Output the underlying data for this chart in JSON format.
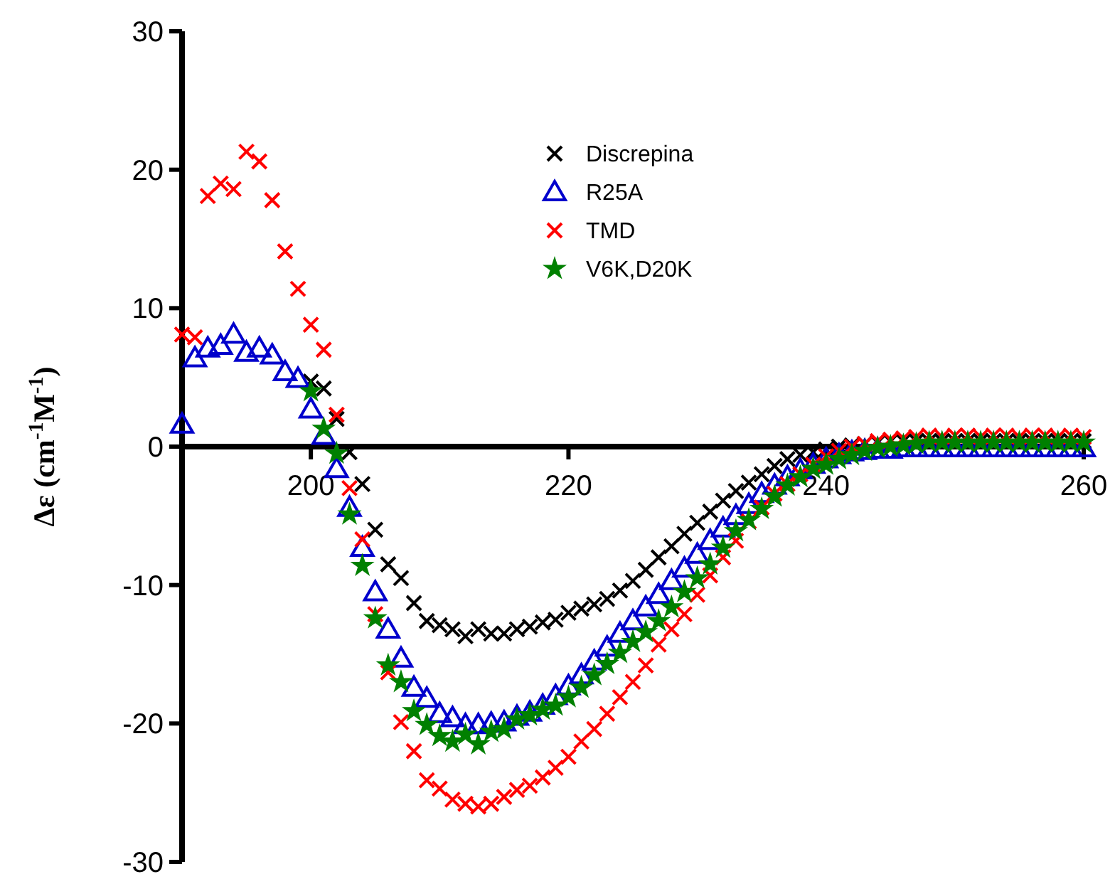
{
  "chart_data": {
    "type": "scatter",
    "ylabel": "Δε (cm$^{-1}$M$^{-1}$)",
    "xlim": [
      190,
      260
    ],
    "xticks": [
      200,
      220,
      240,
      260
    ],
    "ylim": [
      -30,
      30
    ],
    "yticks": [
      -30,
      -20,
      -10,
      0,
      10,
      20,
      30
    ],
    "grid": false,
    "legend": "top right",
    "series": [
      {
        "name": "Discrepina",
        "color": "#000000",
        "marker": "cross",
        "x": [
          200,
          201,
          202,
          203,
          204,
          205,
          206,
          207,
          208,
          209,
          210,
          211,
          212,
          213,
          214,
          215,
          216,
          217,
          218,
          219,
          220,
          221,
          222,
          223,
          224,
          225,
          226,
          227,
          228,
          229,
          230,
          231,
          232,
          233,
          234,
          235,
          236,
          237,
          238,
          239,
          240,
          241,
          242,
          243,
          244,
          245,
          246,
          247,
          248,
          249,
          250,
          251,
          252,
          253,
          254,
          255,
          256,
          257,
          258,
          259,
          260
        ],
        "values": [
          4.7,
          4.2,
          2.0,
          -0.4,
          -2.7,
          -6.0,
          -8.5,
          -9.5,
          -11.3,
          -12.6,
          -12.9,
          -13.2,
          -13.7,
          -13.2,
          -13.5,
          -13.5,
          -13.2,
          -13.0,
          -12.7,
          -12.5,
          -12.0,
          -11.7,
          -11.4,
          -11.0,
          -10.4,
          -9.7,
          -8.9,
          -8.0,
          -7.2,
          -6.3,
          -5.5,
          -4.7,
          -3.9,
          -3.2,
          -2.6,
          -2.0,
          -1.4,
          -0.9,
          -0.6,
          -0.4,
          -0.2,
          0.0,
          0.1,
          0.2,
          0.3,
          0.4,
          0.4,
          0.4,
          0.4,
          0.4,
          0.4,
          0.4,
          0.4,
          0.4,
          0.4,
          0.4,
          0.4,
          0.4,
          0.4,
          0.4,
          0.4
        ]
      },
      {
        "name": "R25A",
        "color": "#0000cc",
        "marker": "triangle",
        "x": [
          190,
          191,
          192,
          193,
          194,
          195,
          196,
          197,
          198,
          199,
          200,
          201,
          202,
          203,
          204,
          205,
          206,
          207,
          208,
          209,
          210,
          211,
          212,
          213,
          214,
          215,
          216,
          217,
          218,
          219,
          220,
          221,
          222,
          223,
          224,
          225,
          226,
          227,
          228,
          229,
          230,
          231,
          232,
          233,
          234,
          235,
          236,
          237,
          238,
          239,
          240,
          241,
          242,
          243,
          244,
          245,
          246,
          247,
          248,
          249,
          250,
          251,
          252,
          253,
          254,
          255,
          256,
          257,
          258,
          259,
          260
        ],
        "values": [
          1.6,
          6.4,
          7.1,
          7.3,
          8.1,
          6.8,
          7.1,
          6.6,
          5.4,
          4.9,
          2.7,
          0.8,
          -1.6,
          -4.4,
          -7.3,
          -10.5,
          -13.2,
          -15.3,
          -17.4,
          -18.2,
          -19.3,
          -19.6,
          -20.1,
          -20.1,
          -20.0,
          -19.9,
          -19.5,
          -19.2,
          -18.7,
          -18.0,
          -17.3,
          -16.5,
          -15.5,
          -14.5,
          -13.5,
          -12.6,
          -11.6,
          -10.7,
          -9.7,
          -8.8,
          -7.8,
          -6.8,
          -5.9,
          -5.0,
          -4.2,
          -3.4,
          -2.8,
          -2.2,
          -1.7,
          -1.3,
          -0.9,
          -0.6,
          -0.4,
          -0.3,
          -0.2,
          -0.2,
          -0.1,
          -0.1,
          -0.1,
          -0.1,
          -0.1,
          -0.1,
          -0.1,
          -0.1,
          -0.1,
          -0.1,
          -0.1,
          -0.1,
          -0.1,
          -0.1,
          -0.1
        ]
      },
      {
        "name": "TMD",
        "color": "#ff0000",
        "marker": "cross",
        "x": [
          190,
          191,
          192,
          193,
          194,
          195,
          196,
          197,
          198,
          199,
          200,
          201,
          202,
          203,
          204,
          205,
          206,
          207,
          208,
          209,
          210,
          211,
          212,
          213,
          214,
          215,
          216,
          217,
          218,
          219,
          220,
          221,
          222,
          223,
          224,
          225,
          226,
          227,
          228,
          229,
          230,
          231,
          232,
          233,
          234,
          235,
          236,
          237,
          238,
          239,
          240,
          241,
          242,
          243,
          244,
          245,
          246,
          247,
          248,
          249,
          250,
          251,
          252,
          253,
          254,
          255,
          256,
          257,
          258,
          259,
          260
        ],
        "values": [
          8.1,
          7.9,
          18.1,
          19.0,
          18.6,
          21.3,
          20.6,
          17.8,
          14.1,
          11.4,
          8.8,
          7.0,
          2.3,
          -3.0,
          -6.7,
          -12.1,
          -16.3,
          -19.9,
          -22.0,
          -24.1,
          -24.7,
          -25.5,
          -25.8,
          -26.0,
          -25.8,
          -25.3,
          -24.8,
          -24.5,
          -23.9,
          -23.2,
          -22.4,
          -21.3,
          -20.4,
          -19.3,
          -18.1,
          -17.0,
          -15.8,
          -14.3,
          -13.2,
          -12.1,
          -10.7,
          -9.3,
          -8.0,
          -6.8,
          -5.4,
          -4.4,
          -3.4,
          -2.7,
          -2.0,
          -1.3,
          -0.7,
          -0.3,
          0.0,
          0.2,
          0.4,
          0.5,
          0.6,
          0.7,
          0.8,
          0.7,
          0.8,
          0.8,
          0.7,
          0.8,
          0.8,
          0.7,
          0.8,
          0.8,
          0.7,
          0.8,
          0.7
        ]
      },
      {
        "name": "V6K,D20K",
        "color": "#008000",
        "marker": "star",
        "x": [
          200,
          201,
          202,
          203,
          204,
          205,
          206,
          207,
          208,
          209,
          210,
          211,
          212,
          213,
          214,
          215,
          216,
          217,
          218,
          219,
          220,
          221,
          222,
          223,
          224,
          225,
          226,
          227,
          228,
          229,
          230,
          231,
          232,
          233,
          234,
          235,
          236,
          237,
          238,
          239,
          240,
          241,
          242,
          243,
          244,
          245,
          246,
          247,
          248,
          249,
          250,
          251,
          252,
          253,
          254,
          255,
          256,
          257,
          258,
          259,
          260
        ],
        "values": [
          4.0,
          1.3,
          -0.5,
          -4.9,
          -8.6,
          -12.4,
          -15.8,
          -17.0,
          -19.1,
          -20.1,
          -20.9,
          -21.3,
          -20.8,
          -21.5,
          -20.6,
          -20.4,
          -19.7,
          -19.4,
          -19.0,
          -18.7,
          -18.1,
          -17.4,
          -16.5,
          -15.7,
          -14.9,
          -14.1,
          -13.4,
          -12.6,
          -11.6,
          -10.5,
          -9.5,
          -8.5,
          -7.3,
          -6.1,
          -5.3,
          -4.5,
          -3.6,
          -2.8,
          -2.2,
          -1.6,
          -1.3,
          -0.9,
          -0.6,
          -0.3,
          -0.1,
          0.0,
          0.1,
          0.2,
          0.3,
          0.3,
          0.3,
          0.3,
          0.3,
          0.3,
          0.3,
          0.3,
          0.3,
          0.3,
          0.3,
          0.3,
          0.3
        ]
      }
    ]
  }
}
